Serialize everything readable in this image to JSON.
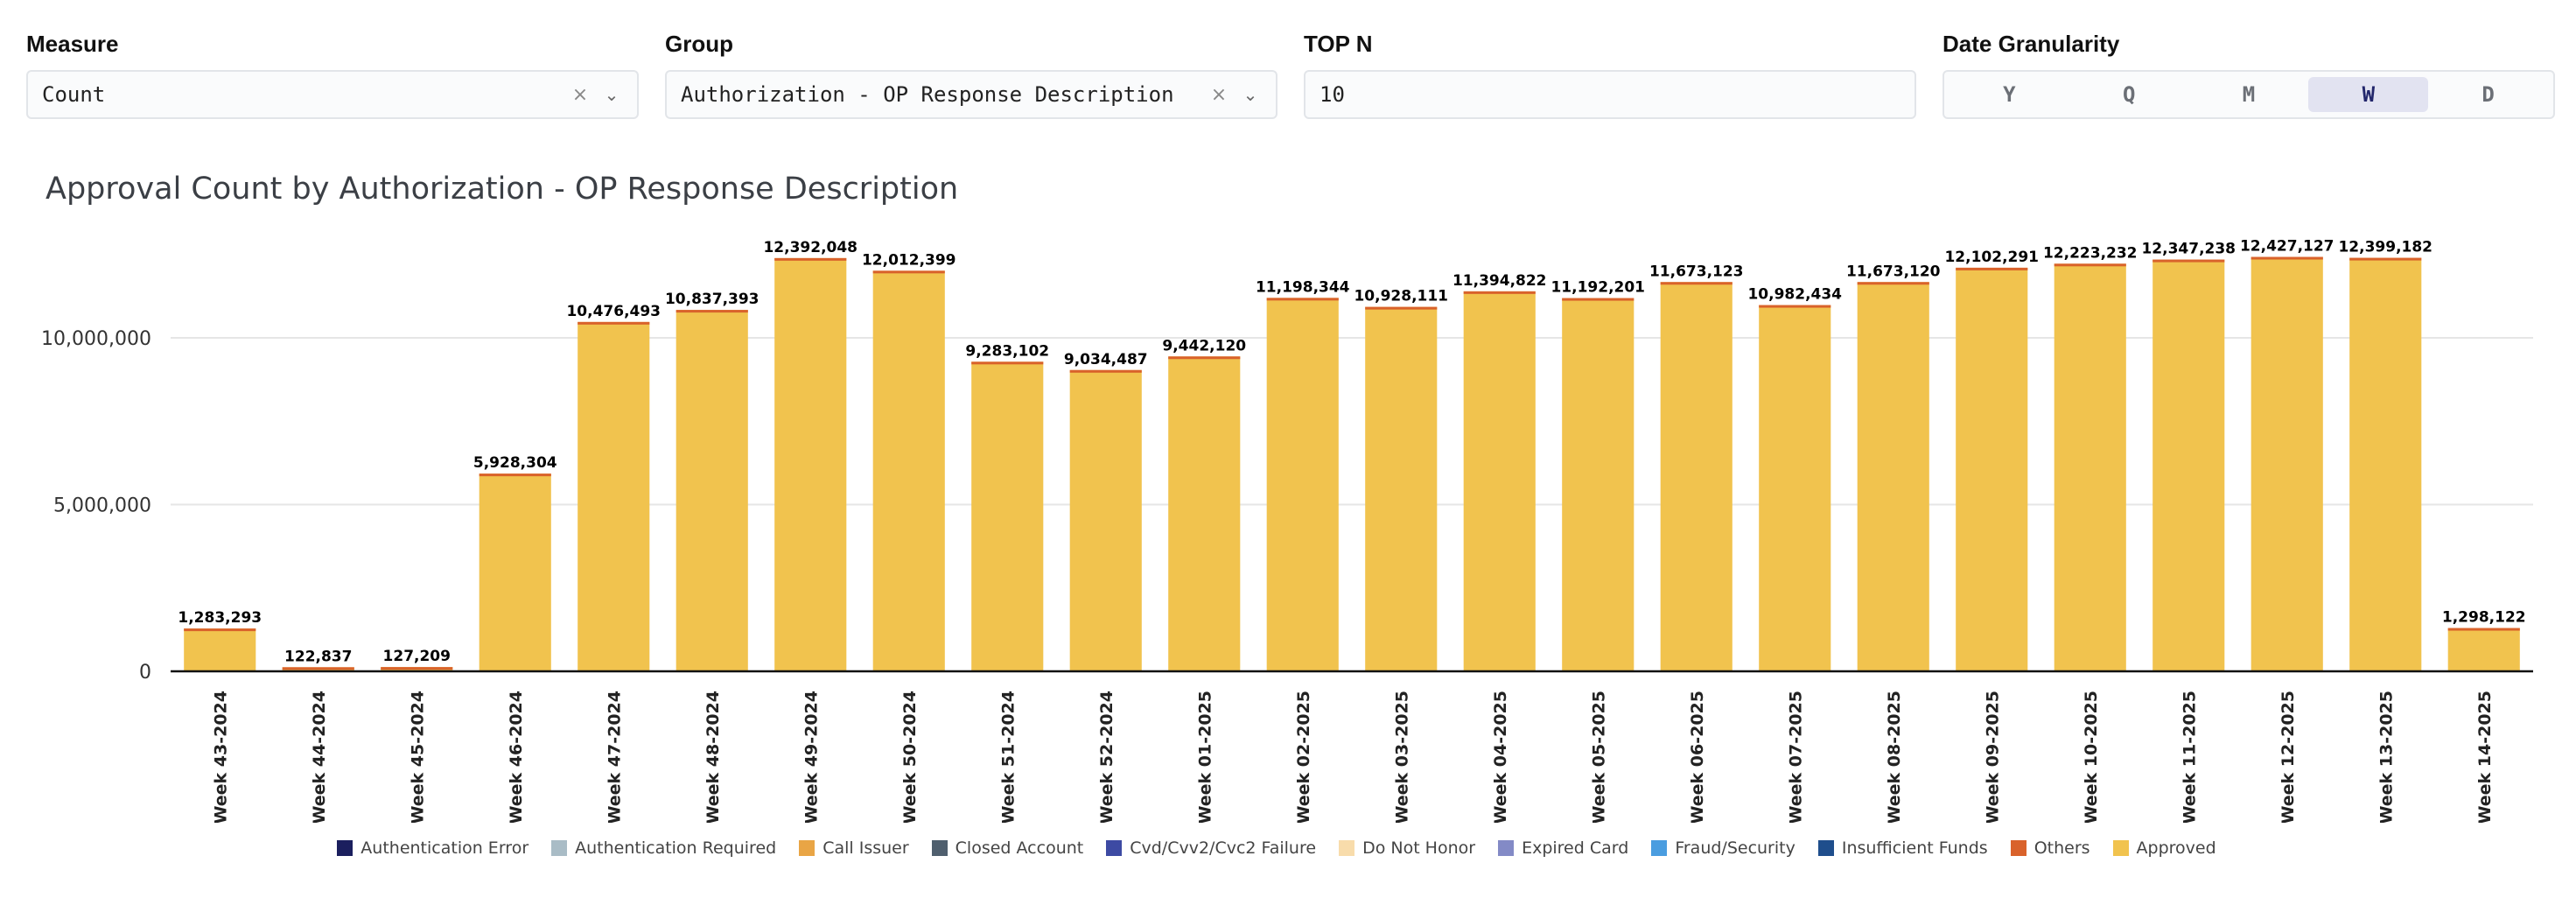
{
  "controls": {
    "measure": {
      "label": "Measure",
      "value": "Count"
    },
    "group": {
      "label": "Group",
      "value": "Authorization - OP Response Description"
    },
    "topn": {
      "label": "TOP N",
      "value": "10"
    },
    "granularity": {
      "label": "Date Granularity",
      "options": [
        "Y",
        "Q",
        "M",
        "W",
        "D"
      ],
      "selected": "W"
    }
  },
  "icons": {
    "clear": "close-icon",
    "dropdown": "chevron-down-icon"
  },
  "chart_data": {
    "type": "bar",
    "title": "Approval Count by Authorization - OP Response Description",
    "xlabel": "",
    "ylabel": "",
    "ylim": [
      0,
      13000000
    ],
    "yticks": [
      0,
      5000000,
      10000000
    ],
    "ytick_labels": [
      "0",
      "5,000,000",
      "10,000,000"
    ],
    "grid": true,
    "legend_position": "bottom",
    "stacked": true,
    "categories": [
      "Week 43-2024",
      "Week 44-2024",
      "Week 45-2024",
      "Week 46-2024",
      "Week 47-2024",
      "Week 48-2024",
      "Week 49-2024",
      "Week 50-2024",
      "Week 51-2024",
      "Week 52-2024",
      "Week 01-2025",
      "Week 02-2025",
      "Week 03-2025",
      "Week 04-2025",
      "Week 05-2025",
      "Week 06-2025",
      "Week 07-2025",
      "Week 08-2025",
      "Week 09-2025",
      "Week 10-2025",
      "Week 11-2025",
      "Week 12-2025",
      "Week 13-2025",
      "Week 14-2025"
    ],
    "totals": [
      1283293,
      122837,
      127209,
      5928304,
      10476493,
      10837393,
      12392048,
      12012399,
      9283102,
      9034487,
      9442120,
      11198344,
      10928111,
      11394822,
      11192201,
      11673123,
      10982434,
      11673120,
      12102291,
      12223232,
      12347238,
      12427127,
      12399182,
      1298122
    ],
    "total_labels": [
      "1,283,293",
      "122,837",
      "127,209",
      "5,928,304",
      "10,476,493",
      "10,837,393",
      "12,392,048",
      "12,012,399",
      "9,283,102",
      "9,034,487",
      "9,442,120",
      "11,198,344",
      "10,928,111",
      "11,394,822",
      "11,192,201",
      "11,673,123",
      "10,982,434",
      "11,673,120",
      "12,102,291",
      "12,223,232",
      "12,347,238",
      "12,427,127",
      "12,399,182",
      "1,298,122"
    ],
    "series": [
      {
        "name": "Authentication Error",
        "color": "#1b1f5e"
      },
      {
        "name": "Authentication Required",
        "color": "#a9bcc6"
      },
      {
        "name": "Call Issuer",
        "color": "#e9a545"
      },
      {
        "name": "Closed Account",
        "color": "#4f5f6e"
      },
      {
        "name": "Cvd/Cvv2/Cvc2 Failure",
        "color": "#3d4aa3"
      },
      {
        "name": "Do Not Honor",
        "color": "#f8dcab"
      },
      {
        "name": "Expired Card",
        "color": "#838ac6"
      },
      {
        "name": "Fraud/Security",
        "color": "#4a9de0"
      },
      {
        "name": "Insufficient Funds",
        "color": "#1f4e8c"
      },
      {
        "name": "Others",
        "color": "#d9622b"
      },
      {
        "name": "Approved",
        "color": "#f1c34e"
      }
    ]
  }
}
